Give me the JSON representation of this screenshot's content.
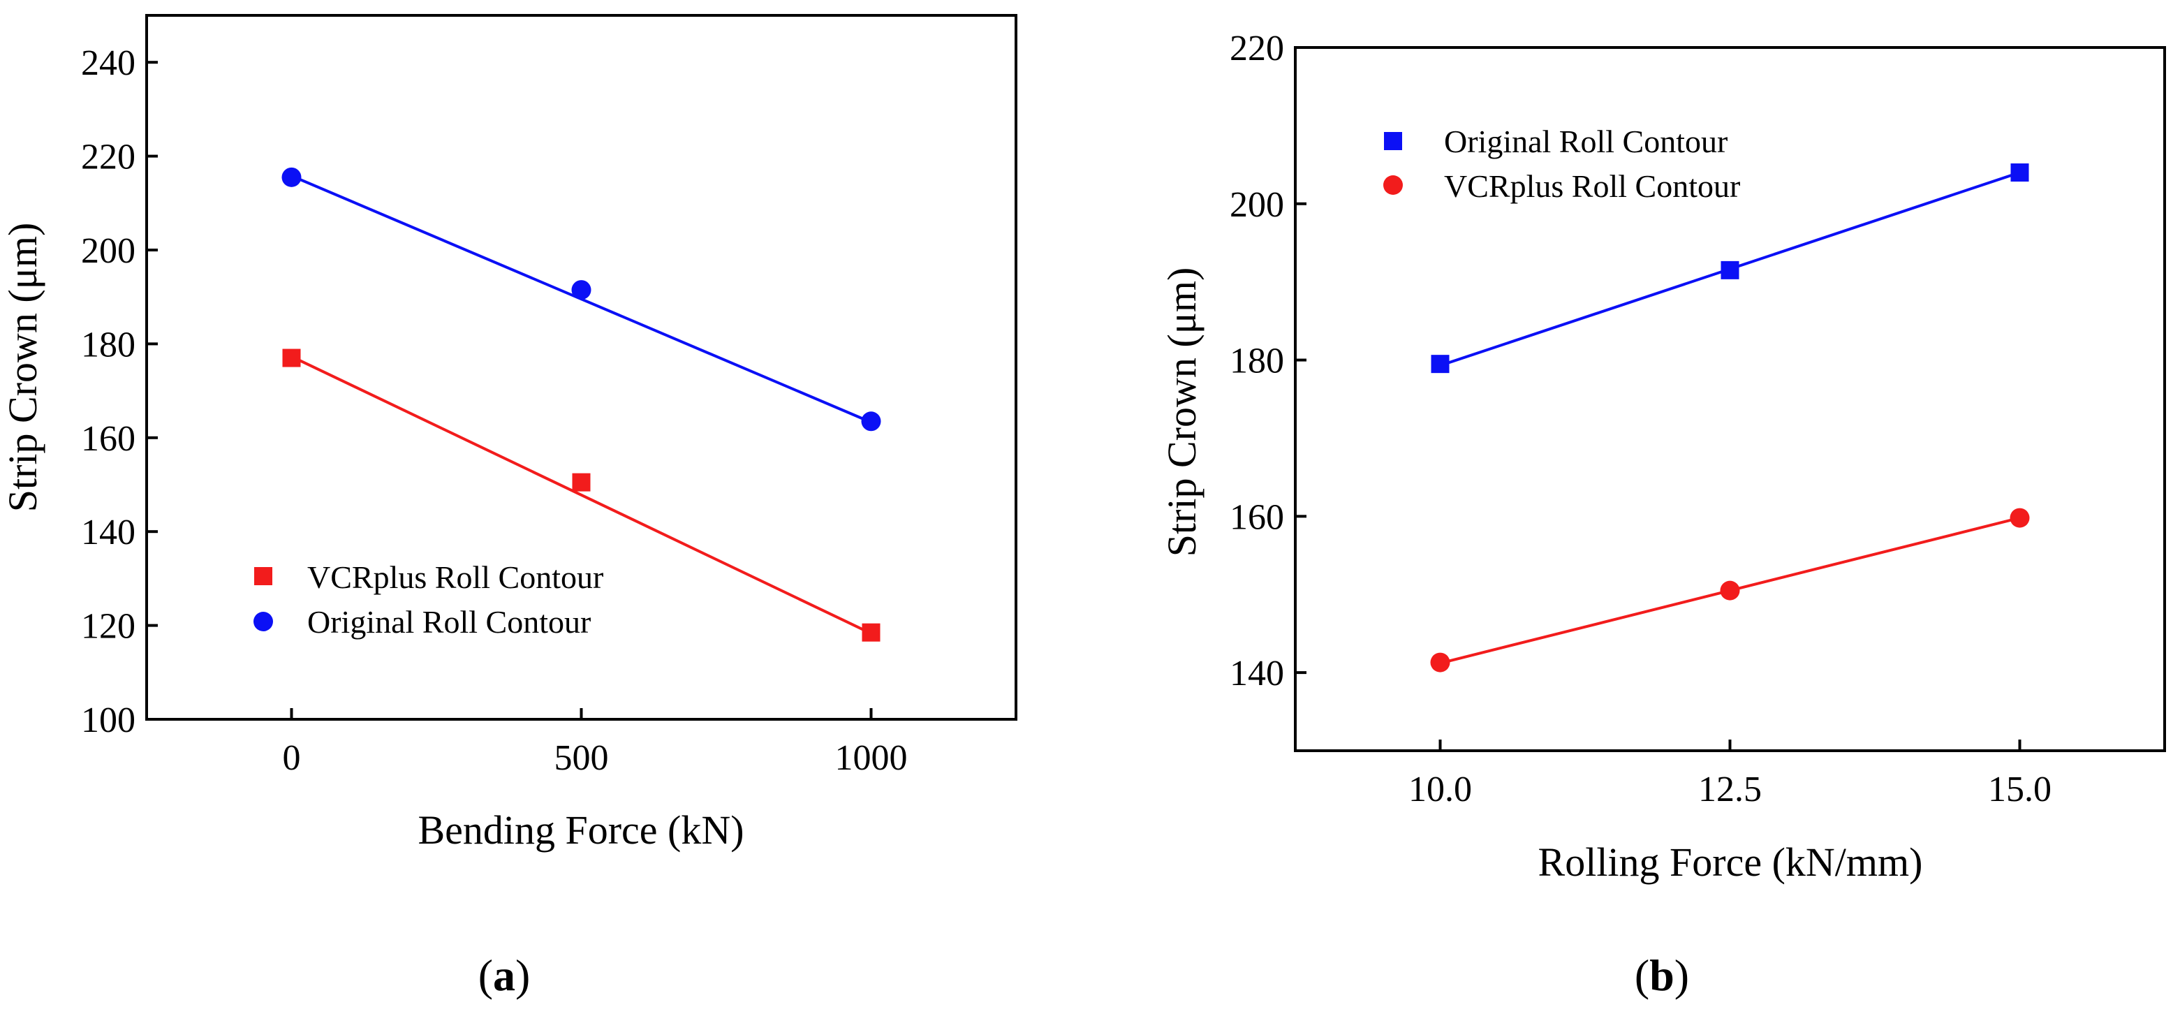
{
  "colors": {
    "blue": "#0b10f5",
    "red": "#f21c1c",
    "axis": "#000000"
  },
  "chart_data": [
    {
      "type": "line",
      "panel_label": "a",
      "title": "",
      "xlabel": "Bending Force (kN)",
      "ylabel": "Strip Crown (μm)",
      "xlim": [
        -250,
        1250
      ],
      "ylim": [
        100,
        250
      ],
      "xticks": [
        0,
        500,
        1000
      ],
      "yticks": [
        100,
        120,
        140,
        160,
        180,
        200,
        220,
        240
      ],
      "xtick_labels": [
        "0",
        "500",
        "1000"
      ],
      "ytick_labels": [
        "100",
        "120",
        "140",
        "160",
        "180",
        "200",
        "220",
        "240"
      ],
      "legend_position": "bottom-left",
      "series": [
        {
          "name": "VCRplus Roll Contour",
          "color": "#f21c1c",
          "marker": "square",
          "x": [
            0,
            500,
            1000
          ],
          "y": [
            177,
            150.5,
            118.5
          ],
          "fit": [
            177.3,
            118.3
          ]
        },
        {
          "name": "Original Roll Contour",
          "color": "#0b10f5",
          "marker": "circle",
          "x": [
            0,
            500,
            1000
          ],
          "y": [
            215.5,
            191.5,
            163.5
          ],
          "fit": [
            215.8,
            163.3
          ]
        }
      ]
    },
    {
      "type": "line",
      "panel_label": "b",
      "title": "",
      "xlabel": "Rolling Force (kN/mm)",
      "ylabel": "Strip Crown (μm)",
      "xlim": [
        8.75,
        16.25
      ],
      "ylim": [
        130,
        220
      ],
      "xticks": [
        10.0,
        12.5,
        15.0
      ],
      "yticks": [
        140,
        160,
        180,
        200,
        220
      ],
      "xtick_labels": [
        "10.0",
        "12.5",
        "15.0"
      ],
      "ytick_labels": [
        "140",
        "160",
        "180",
        "200",
        "220"
      ],
      "legend_position": "top-left",
      "series": [
        {
          "name": "Original Roll Contour",
          "color": "#0b10f5",
          "marker": "square",
          "x": [
            10.0,
            12.5,
            15.0
          ],
          "y": [
            179.5,
            191.5,
            204
          ],
          "fit": [
            179.3,
            204.0
          ]
        },
        {
          "name": "VCRplus Roll Contour",
          "color": "#f21c1c",
          "marker": "circle",
          "x": [
            10.0,
            12.5,
            15.0
          ],
          "y": [
            141.3,
            150.5,
            159.8
          ],
          "fit": [
            141.2,
            159.8
          ]
        }
      ]
    }
  ]
}
